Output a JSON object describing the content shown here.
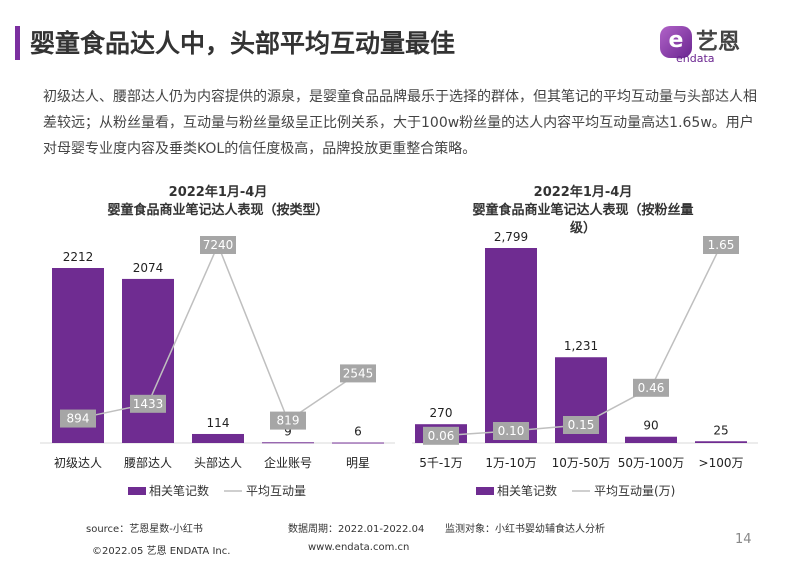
{
  "header": {
    "title": "婴童食品达人中，头部平均互动量最佳",
    "logo_cn": "艺恩",
    "logo_en": "endata",
    "logo_mark": "e"
  },
  "paragraph": "初级达人、腰部达人仍为内容提供的源泉，是婴童食品品牌最乐于选择的群体，但其笔记的平均互动量与头部达人相差较远；从粉丝量看，互动量与粉丝量级呈正比例关系，大于100w粉丝量的达人内容平均互动量高达1.65w。用户对母婴专业度内容及垂类KOL的信任度极高，品牌投放更重整合策略。",
  "colors": {
    "bar": "#6f2c91",
    "line": "#bfbfbf",
    "label_box": "#a6a6a6",
    "accent": "#7b2fa0"
  },
  "chart_data": [
    {
      "type": "bar+line",
      "title": "2022年1月-4月",
      "subtitle": "婴童食品商业笔记达人表现（按类型）",
      "categories": [
        "初级达人",
        "腰部达人",
        "头部达人",
        "企业账号",
        "明星"
      ],
      "series": [
        {
          "name": "相关笔记数",
          "type": "bar",
          "values": [
            2212,
            2074,
            114,
            9,
            6
          ],
          "labels": [
            "2212",
            "2074",
            "114",
            "9",
            "6"
          ]
        },
        {
          "name": "平均互动量",
          "type": "line",
          "values": [
            894,
            1433,
            7240,
            819,
            2545
          ],
          "labels": [
            "894",
            "1433",
            "7240",
            "819",
            "2545"
          ]
        }
      ],
      "legend": "bottom",
      "grid": false
    },
    {
      "type": "bar+line",
      "title": "2022年1月-4月",
      "subtitle": "婴童食品商业笔记达人表现（按粉丝量级）",
      "categories": [
        "5千-1万",
        "1万-10万",
        "10万-50万",
        "50万-100万",
        ">100万"
      ],
      "series": [
        {
          "name": "相关笔记数",
          "type": "bar",
          "values": [
            270,
            2799,
            1231,
            90,
            25
          ],
          "labels": [
            "270",
            "2,799",
            "1,231",
            "90",
            "25"
          ]
        },
        {
          "name": "平均互动量(万)",
          "type": "line",
          "values": [
            0.06,
            0.1,
            0.15,
            0.46,
            1.65
          ],
          "labels": [
            "0.06",
            "0.10",
            "0.15",
            "0.46",
            "1.65"
          ]
        }
      ],
      "legend": "bottom",
      "grid": false
    }
  ],
  "footer": {
    "source": "source：艺恩星数-小红书",
    "period": "数据周期：2022.01-2022.04",
    "target": "监测对象：小红书婴幼辅食达人分析",
    "copyright": "©2022.05 艺恩 ENDATA Inc.",
    "website": "www.endata.com.cn",
    "page": "14"
  }
}
